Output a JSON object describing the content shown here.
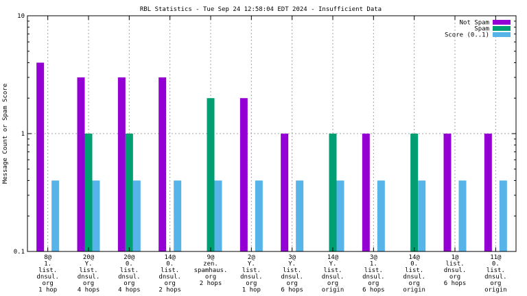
{
  "chart_data": {
    "type": "bar",
    "title": "RBL Statistics - Tue Sep 24 12:58:04 EDT 2024 - Insufficient Data",
    "xlabel": "",
    "ylabel": "Message Count or Spam Score",
    "yscale": "log",
    "ylim": [
      0.1,
      10
    ],
    "yticks": [
      {
        "value": 0.1,
        "label": "0.1"
      },
      {
        "value": 1,
        "label": "1"
      },
      {
        "value": 10,
        "label": "10"
      }
    ],
    "grid": true,
    "legend_position": "top-right",
    "categories": [
      [
        "8@",
        "1.",
        "list.",
        "dnsul.",
        "org",
        "1 hop"
      ],
      [
        "20@",
        "Y.",
        "list.",
        "dnsul.",
        "org",
        "4 hops"
      ],
      [
        "20@",
        "0.",
        "list.",
        "dnsul.",
        "org",
        "4 hops"
      ],
      [
        "14@",
        "0.",
        "list.",
        "dnsul.",
        "org",
        "2 hops"
      ],
      [
        "9@",
        "zen.",
        "spamhaus.",
        "org",
        "2 hops"
      ],
      [
        "2@",
        "Y.",
        "list.",
        "dnsul.",
        "org",
        "1 hop"
      ],
      [
        "3@",
        "Y.",
        "list.",
        "dnsul.",
        "org",
        "6 hops"
      ],
      [
        "14@",
        "Y.",
        "list.",
        "dnsul.",
        "org",
        "origin"
      ],
      [
        "3@",
        "1.",
        "list.",
        "dnsul.",
        "org",
        "6 hops"
      ],
      [
        "14@",
        "0.",
        "list.",
        "dnsul.",
        "org",
        "origin"
      ],
      [
        "1@",
        "list.",
        "dnsul.",
        "org",
        "6 hops"
      ],
      [
        "11@",
        "0.",
        "list.",
        "dnsul.",
        "org",
        "origin"
      ]
    ],
    "series": [
      {
        "name": "Not Spam",
        "color": "#9400d3",
        "values": [
          4,
          3,
          3,
          3,
          null,
          2,
          1,
          null,
          1,
          null,
          1,
          1
        ]
      },
      {
        "name": "Spam",
        "color": "#009e73",
        "values": [
          null,
          1,
          1,
          null,
          2,
          null,
          null,
          1,
          null,
          1,
          null,
          null
        ]
      },
      {
        "name": "Score (0..1)",
        "color": "#56b4e9",
        "values": [
          0.4,
          0.4,
          0.4,
          0.4,
          0.4,
          0.4,
          0.4,
          0.4,
          0.4,
          0.4,
          0.4,
          0.4
        ]
      }
    ]
  }
}
